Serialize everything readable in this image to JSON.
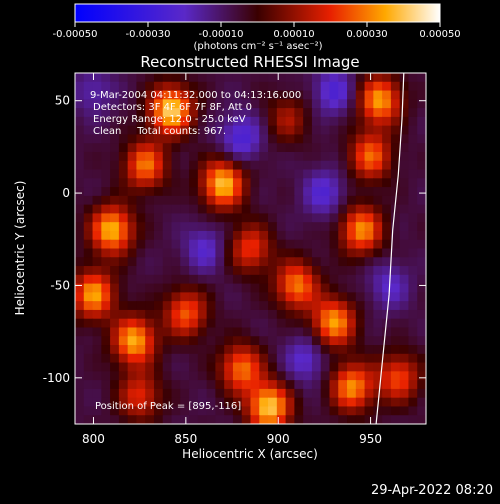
{
  "chart_data": {
    "type": "heatmap",
    "title": "Reconstructed RHESSI Image",
    "xlabel": "Heliocentric X (arcsec)",
    "ylabel": "Heliocentric Y (arcsec)",
    "xlim": [
      790,
      980
    ],
    "ylim": [
      -125,
      65
    ],
    "xticks": [
      800,
      850,
      900,
      950
    ],
    "yticks": [
      -100,
      -50,
      0,
      50
    ],
    "colorbar": {
      "min": -0.0005,
      "max": 0.0005,
      "ticks": [
        -0.0005,
        -0.0003,
        -0.0001,
        0.0001,
        0.0003,
        0.0005
      ],
      "tick_labels": [
        "-0.00050",
        "-0.00030",
        "-0.00010",
        "0.00010",
        "0.00030",
        "0.00050"
      ],
      "units_label": "(photons cm⁻² s⁻¹ asec⁻²)",
      "colormap": "blue-purple-red-yellow-white"
    },
    "annotations": [
      "9-Mar-2004 04:11:32.000 to 04:13:16.000",
      "Detectors: 3F 4F 6F 7F 8F, Att 0",
      "Energy Range: 12.0 - 25.0 keV",
      "Clean     Total counts: 967."
    ],
    "peak_label": "Position of Peak = [895,-116]",
    "peak": [
      895,
      -116
    ],
    "limb": [
      [
        968,
        65
      ],
      [
        967,
        40
      ],
      [
        965,
        10
      ],
      [
        962,
        -20
      ],
      [
        960,
        -55
      ],
      [
        957,
        -85
      ],
      [
        955,
        -105
      ],
      [
        953,
        -125
      ]
    ],
    "grid_resolution": [
      40,
      40
    ],
    "sources": [
      {
        "x": 842,
        "y": 45,
        "intensity": 0.00048
      },
      {
        "x": 828,
        "y": 15,
        "intensity": 0.00035
      },
      {
        "x": 810,
        "y": -20,
        "intensity": 0.00044
      },
      {
        "x": 800,
        "y": -55,
        "intensity": 0.0004
      },
      {
        "x": 822,
        "y": -80,
        "intensity": 0.00042
      },
      {
        "x": 850,
        "y": -65,
        "intensity": 0.00032
      },
      {
        "x": 870,
        "y": 5,
        "intensity": 0.00045
      },
      {
        "x": 885,
        "y": -30,
        "intensity": 0.00028
      },
      {
        "x": 895,
        "y": -116,
        "intensity": 0.00047
      },
      {
        "x": 880,
        "y": -95,
        "intensity": 0.00035
      },
      {
        "x": 910,
        "y": -50,
        "intensity": 0.00036
      },
      {
        "x": 930,
        "y": -70,
        "intensity": 0.0004
      },
      {
        "x": 945,
        "y": -20,
        "intensity": 0.00038
      },
      {
        "x": 950,
        "y": 20,
        "intensity": 0.00033
      },
      {
        "x": 955,
        "y": 50,
        "intensity": 0.0004
      },
      {
        "x": 940,
        "y": -105,
        "intensity": 0.00038
      },
      {
        "x": 965,
        "y": -100,
        "intensity": 0.0003
      },
      {
        "x": 905,
        "y": 40,
        "intensity": 0.00018
      },
      {
        "x": 825,
        "y": -110,
        "intensity": 0.00026
      }
    ],
    "negative_regions": [
      {
        "x": 880,
        "y": 30,
        "intensity": -0.0002
      },
      {
        "x": 930,
        "y": 55,
        "intensity": -0.00018
      },
      {
        "x": 925,
        "y": 0,
        "intensity": -0.00017
      },
      {
        "x": 860,
        "y": -30,
        "intensity": -0.00015
      },
      {
        "x": 915,
        "y": -90,
        "intensity": -0.00016
      },
      {
        "x": 800,
        "y": 55,
        "intensity": -0.00012
      },
      {
        "x": 960,
        "y": -50,
        "intensity": -0.00014
      }
    ]
  },
  "footer": {
    "timestamp": "29-Apr-2022 08:20"
  }
}
